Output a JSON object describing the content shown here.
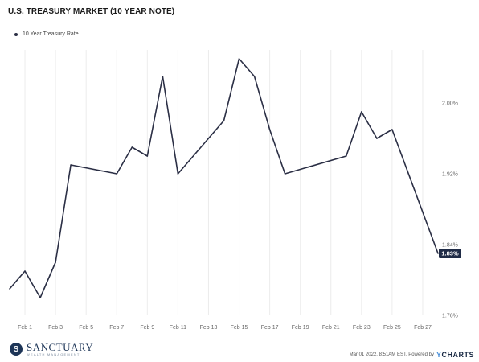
{
  "chart_data": {
    "type": "line",
    "title": "U.S. TREASURY MARKET (10 YEAR NOTE)",
    "legend": {
      "label": "10 Year Treasury Rate",
      "placement": "top-left"
    },
    "x_tick_labels": [
      "Feb 1",
      "Feb 3",
      "Feb 5",
      "Feb 7",
      "Feb 9",
      "Feb 11",
      "Feb 13",
      "Feb 15",
      "Feb 17",
      "Feb 19",
      "Feb 21",
      "Feb 23",
      "Feb 25",
      "Feb 27"
    ],
    "y_ticks": [
      1.76,
      1.84,
      1.92,
      2.0
    ],
    "y_tick_labels": [
      "1.76%",
      "1.84%",
      "1.92%",
      "2.00%"
    ],
    "ylim": [
      1.76,
      2.06
    ],
    "grid": {
      "x": true,
      "y": false
    },
    "series": [
      {
        "name": "10 Year Treasury Rate",
        "color": "#2b2f45",
        "points": [
          {
            "x": "Jan 31",
            "y": 1.79
          },
          {
            "x": "Feb 1",
            "y": 1.81
          },
          {
            "x": "Feb 2",
            "y": 1.78
          },
          {
            "x": "Feb 3",
            "y": 1.82
          },
          {
            "x": "Feb 4",
            "y": 1.93
          },
          {
            "x": "Feb 7",
            "y": 1.92
          },
          {
            "x": "Feb 8",
            "y": 1.95
          },
          {
            "x": "Feb 9",
            "y": 1.94
          },
          {
            "x": "Feb 10",
            "y": 2.03
          },
          {
            "x": "Feb 11",
            "y": 1.92
          },
          {
            "x": "Feb 14",
            "y": 1.98
          },
          {
            "x": "Feb 15",
            "y": 2.05
          },
          {
            "x": "Feb 16",
            "y": 2.03
          },
          {
            "x": "Feb 17",
            "y": 1.97
          },
          {
            "x": "Feb 18",
            "y": 1.92
          },
          {
            "x": "Feb 22",
            "y": 1.94
          },
          {
            "x": "Feb 23",
            "y": 1.99
          },
          {
            "x": "Feb 24",
            "y": 1.96
          },
          {
            "x": "Feb 25",
            "y": 1.97
          },
          {
            "x": "Feb 28",
            "y": 1.83
          }
        ],
        "last_value_label": "1.83%"
      }
    ]
  },
  "branding": {
    "logo_initial": "S",
    "logo_name": "SANCTUARY",
    "logo_sub": "WEALTH MANAGEMENT"
  },
  "footer": {
    "timestamp": "Mar 01 2022, 8:51AM EST. Powered by",
    "powered_by_y": "Y",
    "powered_by_rest": "CHARTS"
  },
  "colors": {
    "line": "#2b2f45",
    "value_badge": "#1f2b46",
    "grid": "#ececec"
  }
}
